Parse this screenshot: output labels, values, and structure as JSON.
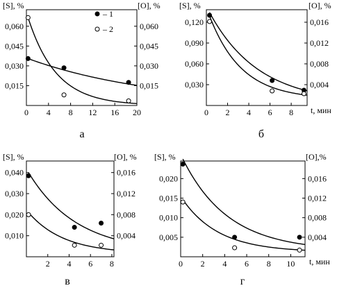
{
  "chart_data": [
    {
      "type": "scatter",
      "panel_label": "а",
      "left_axis_label": "[S], %",
      "right_axis_label": "[O], %",
      "x_axis_label": "",
      "xlim": [
        0,
        20
      ],
      "x_ticks": [
        0,
        4,
        8,
        12,
        16,
        20
      ],
      "left_ylim": [
        0,
        0.0725
      ],
      "left_ticks": [
        "0,015",
        "0,030",
        "0,045",
        "0,060"
      ],
      "left_tick_values": [
        0.015,
        0.03,
        0.045,
        0.06
      ],
      "right_ylim": [
        0,
        0.0725
      ],
      "right_ticks": [
        "0,015",
        "0,030",
        "0,045",
        "0,060"
      ],
      "right_tick_values": [
        0.015,
        0.03,
        0.045,
        0.06
      ],
      "legend": [
        "– 1",
        "– 2"
      ],
      "series": [
        {
          "marker": "filled",
          "axis": "left",
          "points": [
            [
              0.3,
              0.0355
            ],
            [
              6.8,
              0.0285
            ],
            [
              18.5,
              0.0175
            ]
          ],
          "curve": {
            "a": 0.0355,
            "k": 0.043,
            "c": 0
          }
        },
        {
          "marker": "open",
          "axis": "right",
          "points": [
            [
              0.3,
              0.0665
            ],
            [
              6.8,
              0.008
            ],
            [
              18.5,
              0.0035
            ]
          ],
          "curve": {
            "a": 0.0665,
            "k": 0.195,
            "c": 0
          }
        }
      ]
    },
    {
      "type": "scatter",
      "panel_label": "б",
      "left_axis_label": "[S], %",
      "right_axis_label": "[O], %",
      "x_axis_label": "t, мин",
      "xlim": [
        0,
        9.5
      ],
      "x_ticks": [
        0,
        2,
        4,
        6,
        8
      ],
      "left_ylim": [
        0,
        0.138
      ],
      "left_ticks": [
        "0,030",
        "0,060",
        "0,090",
        "0,120"
      ],
      "left_tick_values": [
        0.03,
        0.06,
        0.09,
        0.12
      ],
      "right_ylim": [
        0,
        0.0184
      ],
      "right_ticks": [
        "0,004",
        "0,008",
        "0,012",
        "0,016"
      ],
      "right_tick_values": [
        0.004,
        0.008,
        0.012,
        0.016
      ],
      "series": [
        {
          "marker": "filled",
          "axis": "left",
          "points": [
            [
              0.3,
              0.13
            ],
            [
              6.2,
              0.036
            ],
            [
              9.2,
              0.022
            ]
          ],
          "curve": {
            "a": 0.131,
            "k": 0.215,
            "c": 0.003
          }
        },
        {
          "marker": "open",
          "axis": "left",
          "points": [
            [
              0.3,
              0.121
            ],
            [
              6.2,
              0.021
            ],
            [
              9.2,
              0.017
            ]
          ],
          "curve": {
            "a": 0.12,
            "k": 0.33,
            "c": 0.009
          }
        }
      ]
    },
    {
      "type": "scatter",
      "panel_label": "в",
      "left_axis_label": "[S], %",
      "right_axis_label": "[O], %",
      "x_axis_label": "",
      "xlim": [
        0,
        8.2
      ],
      "x_ticks": [
        2,
        4,
        6,
        8
      ],
      "left_ylim": [
        0,
        0.0455
      ],
      "left_ticks": [
        "0,010",
        "0,020",
        "0,030",
        "0,040"
      ],
      "left_tick_values": [
        0.01,
        0.02,
        0.03,
        0.04
      ],
      "right_ylim": [
        0,
        0.0182
      ],
      "right_ticks": [
        "0,004",
        "0,008",
        "0,012",
        "0,016"
      ],
      "right_tick_values": [
        0.004,
        0.008,
        0.012,
        0.016
      ],
      "series": [
        {
          "marker": "filled",
          "axis": "left",
          "points": [
            [
              0.2,
              0.0385
            ],
            [
              4.5,
              0.014
            ],
            [
              7.0,
              0.016
            ]
          ],
          "curve": {
            "a": 0.038,
            "k": 0.22,
            "c": 0.002
          }
        },
        {
          "marker": "open",
          "axis": "left",
          "points": [
            [
              0.2,
              0.02
            ],
            [
              4.5,
              0.0055
            ],
            [
              7.0,
              0.0055
            ]
          ],
          "curve": {
            "a": 0.0195,
            "k": 0.3,
            "c": 0.0015
          }
        }
      ]
    },
    {
      "type": "scatter",
      "panel_label": "г",
      "left_axis_label": "[S], %",
      "right_axis_label": "[O],%",
      "x_axis_label": "t, мин",
      "xlim": [
        0,
        11.3
      ],
      "x_ticks": [
        0,
        2,
        4,
        6,
        8,
        10
      ],
      "left_ylim": [
        0,
        0.0245
      ],
      "left_ticks": [
        "0,005",
        "0,010",
        "0,015",
        "0,020"
      ],
      "left_tick_values": [
        0.005,
        0.01,
        0.015,
        0.02
      ],
      "right_ylim": [
        0,
        0.0196
      ],
      "right_ticks": [
        "0,004",
        "0,008",
        "0,012",
        "0,016"
      ],
      "right_tick_values": [
        0.004,
        0.008,
        0.012,
        0.016
      ],
      "series": [
        {
          "marker": "filled",
          "axis": "left",
          "points": [
            [
              0.2,
              0.0237
            ],
            [
              4.9,
              0.005
            ],
            [
              10.8,
              0.005
            ]
          ],
          "curve": {
            "a": 0.0235,
            "k": 0.24,
            "c": 0.0015
          }
        },
        {
          "marker": "open",
          "axis": "left",
          "points": [
            [
              0.2,
              0.014
            ],
            [
              4.9,
              0.0023
            ],
            [
              10.8,
              0.0017
            ]
          ],
          "curve": {
            "a": 0.0134,
            "k": 0.3,
            "c": 0.0012
          }
        }
      ]
    }
  ]
}
